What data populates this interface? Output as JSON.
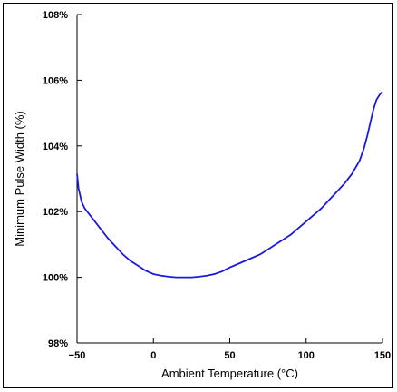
{
  "chart_data": {
    "type": "line",
    "title": "",
    "xlabel": "Ambient Temperature (°C)",
    "ylabel": "Minimum Pulse Width (%)",
    "xlim": [
      -50,
      150
    ],
    "ylim": [
      98,
      108
    ],
    "x_ticks": [
      -50,
      0,
      50,
      100,
      150
    ],
    "x_tick_labels": [
      "−50",
      "0",
      "50",
      "100",
      "150"
    ],
    "y_ticks": [
      98,
      100,
      102,
      104,
      106,
      108
    ],
    "y_tick_labels": [
      "98%",
      "100%",
      "102%",
      "104%",
      "106%",
      "108%"
    ],
    "grid": false,
    "legend": "none",
    "line_color": "#1a1adc",
    "series": [
      {
        "x": [
          -50,
          -49,
          -47,
          -45,
          -40,
          -35,
          -30,
          -25,
          -20,
          -15,
          -10,
          -5,
          0,
          5,
          10,
          15,
          20,
          25,
          30,
          35,
          40,
          45,
          50,
          55,
          60,
          65,
          70,
          75,
          80,
          85,
          90,
          95,
          100,
          105,
          110,
          115,
          120,
          125,
          130,
          135,
          138,
          140,
          142,
          144,
          146,
          148,
          150
        ],
        "y": [
          103.15,
          102.7,
          102.3,
          102.1,
          101.8,
          101.5,
          101.2,
          100.95,
          100.7,
          100.5,
          100.35,
          100.2,
          100.1,
          100.05,
          100.02,
          100.0,
          100.0,
          100.0,
          100.02,
          100.05,
          100.1,
          100.18,
          100.3,
          100.4,
          100.5,
          100.6,
          100.7,
          100.85,
          101.0,
          101.15,
          101.3,
          101.5,
          101.7,
          101.9,
          102.1,
          102.35,
          102.6,
          102.85,
          103.15,
          103.55,
          103.95,
          104.3,
          104.7,
          105.1,
          105.4,
          105.55,
          105.65
        ]
      }
    ]
  }
}
